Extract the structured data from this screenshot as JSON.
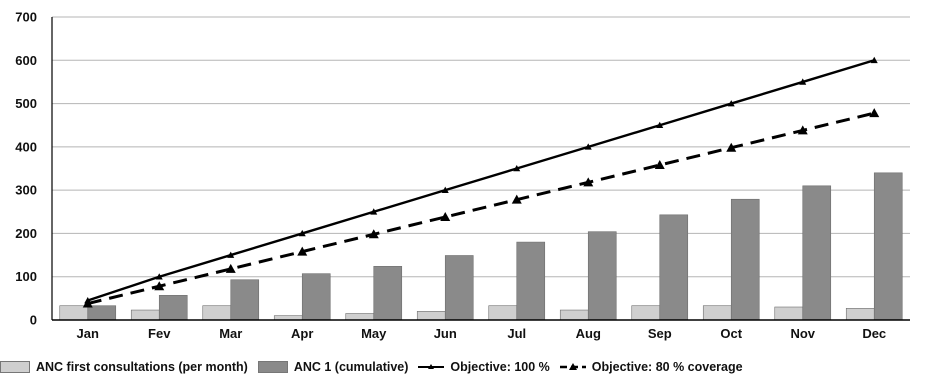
{
  "chart_data": {
    "type": "bar",
    "title": "",
    "xlabel": "",
    "ylabel": "",
    "ylim": [
      0,
      700
    ],
    "yticks": [
      "0",
      "100",
      "200",
      "300",
      "400",
      "500",
      "600",
      "700"
    ],
    "categories": [
      "Jan",
      "Fev",
      "Mar",
      "Apr",
      "May",
      "Jun",
      "Jul",
      "Aug",
      "Sep",
      "Oct",
      "Nov",
      "Dec"
    ],
    "grid": true,
    "legend_position": "bottom",
    "series": [
      {
        "name": "ANC first consultations (per month)",
        "kind": "bar",
        "color": "#cfcfcf",
        "values": [
          33,
          23,
          33,
          10,
          15,
          20,
          33,
          23,
          33,
          33,
          30,
          27
        ]
      },
      {
        "name": "ANC 1 (cumulative)",
        "kind": "bar",
        "color": "#8a8a8a",
        "values": [
          33,
          57,
          93,
          107,
          124,
          149,
          180,
          204,
          243,
          279,
          310,
          340
        ]
      },
      {
        "name": "Objective: 100 %",
        "kind": "line",
        "style": "solid",
        "color": "#000000",
        "values": [
          45,
          100,
          150,
          200,
          250,
          300,
          350,
          400,
          450,
          500,
          550,
          600
        ]
      },
      {
        "name": "Objective: 80 % coverage",
        "kind": "line",
        "style": "dashed",
        "color": "#000000",
        "values": [
          38,
          78,
          118,
          158,
          198,
          238,
          278,
          318,
          358,
          398,
          438,
          478
        ]
      }
    ]
  }
}
